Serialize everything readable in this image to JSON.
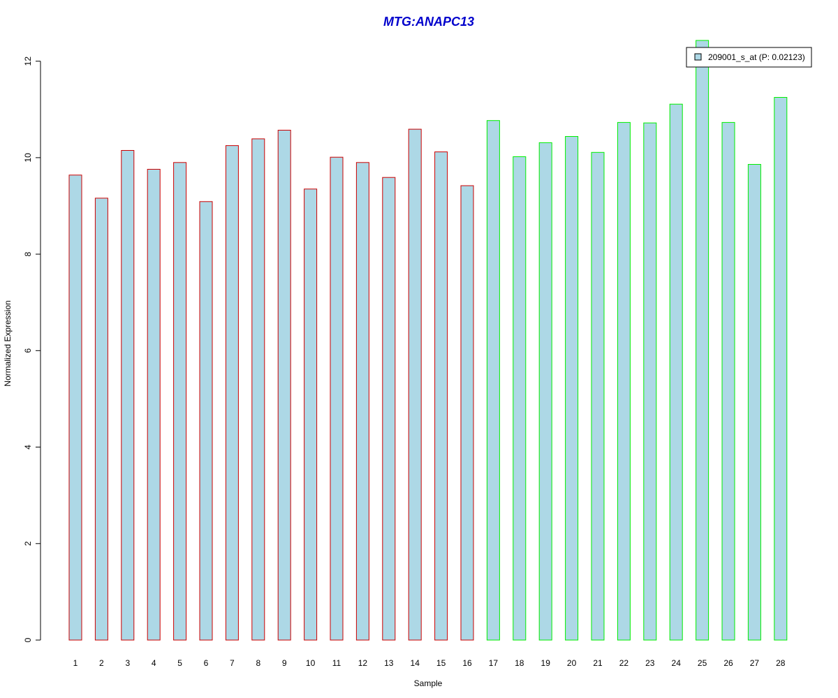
{
  "colors": {
    "title": "#0000cc",
    "bar_fill": "#add8e6",
    "group1_border": "#cc0000",
    "group2_border": "#00ee00",
    "axis": "#000000"
  },
  "chart_data": {
    "type": "bar",
    "title": "MTG:ANAPC13",
    "xlabel": "Sample",
    "ylabel": "Normalized Expression",
    "ylim": [
      0,
      12.4
    ],
    "yticks": [
      0,
      2,
      4,
      6,
      8,
      10,
      12
    ],
    "categories": [
      "1",
      "2",
      "3",
      "4",
      "5",
      "6",
      "7",
      "8",
      "9",
      "10",
      "11",
      "12",
      "13",
      "14",
      "15",
      "16",
      "17",
      "18",
      "19",
      "20",
      "21",
      "22",
      "23",
      "24",
      "25",
      "26",
      "27",
      "28"
    ],
    "series": [
      {
        "name": "209001_s_at (P: 0.02123)",
        "values": [
          9.64,
          9.16,
          10.15,
          9.76,
          9.9,
          9.09,
          10.25,
          10.39,
          10.57,
          9.35,
          10.01,
          9.9,
          9.59,
          10.59,
          10.12,
          9.42,
          10.77,
          10.02,
          10.31,
          10.44,
          10.11,
          10.73,
          10.72,
          11.11,
          12.43,
          10.73,
          9.86,
          11.25
        ]
      }
    ],
    "groups": [
      1,
      1,
      1,
      1,
      1,
      1,
      1,
      1,
      1,
      1,
      1,
      1,
      1,
      1,
      1,
      1,
      2,
      2,
      2,
      2,
      2,
      2,
      2,
      2,
      2,
      2,
      2,
      2
    ],
    "legend": {
      "position": "top-right",
      "entries": [
        "209001_s_at (P: 0.02123)"
      ]
    },
    "grid": false
  }
}
